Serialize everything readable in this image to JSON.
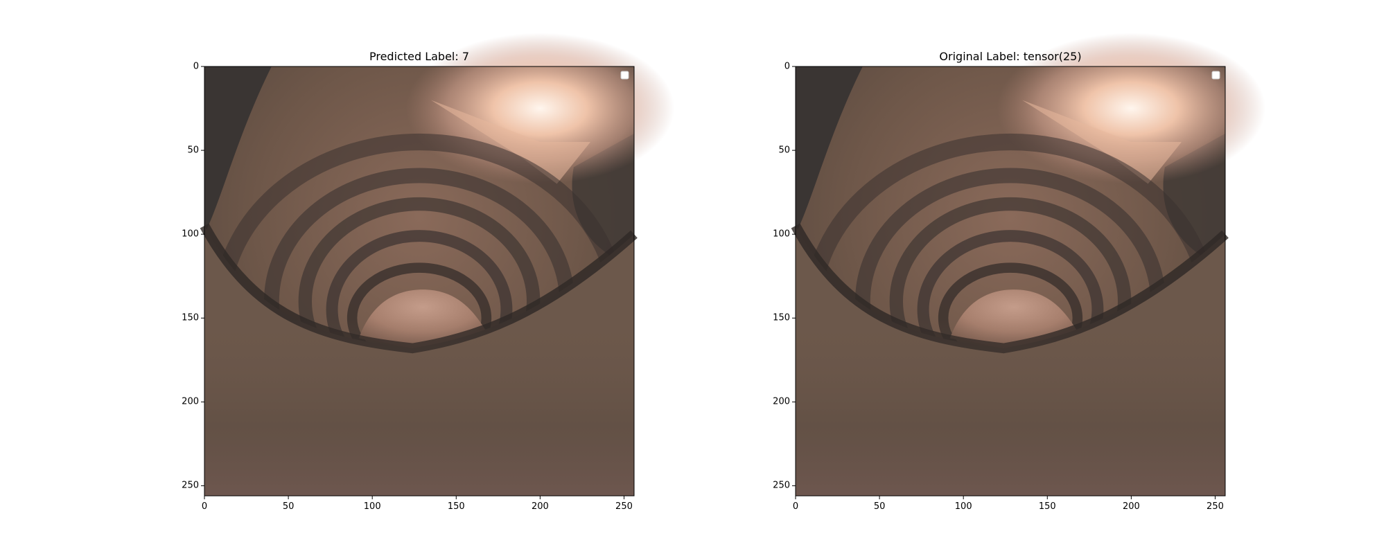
{
  "figure": {
    "panels": [
      {
        "title": "Predicted Label: 7",
        "x_ticks": [
          "0",
          "50",
          "100",
          "150",
          "200",
          "250"
        ],
        "y_ticks": [
          "0",
          "50",
          "100",
          "150",
          "200",
          "250"
        ],
        "image_content": "colonoscopy-tunnel-render"
      },
      {
        "title": "Original Label: tensor(25)",
        "x_ticks": [
          "0",
          "50",
          "100",
          "150",
          "200",
          "250"
        ],
        "y_ticks": [
          "0",
          "50",
          "100",
          "150",
          "200",
          "250"
        ],
        "image_content": "colonoscopy-tunnel-render"
      }
    ],
    "image_extent": [
      0,
      256
    ],
    "legend": "empty"
  }
}
